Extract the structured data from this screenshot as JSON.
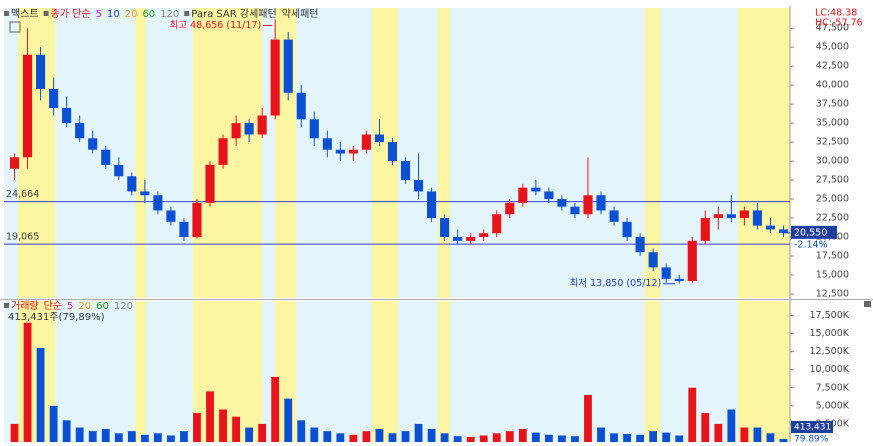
{
  "chart_data": {
    "type": "candlestick",
    "stock_name": "맥스트",
    "legend": [
      {
        "label": "종가 단순",
        "color": "#e8141c"
      },
      {
        "label": "5",
        "color": "#d21fd2"
      },
      {
        "label": "10",
        "color": "#1f3fd2"
      },
      {
        "label": "20",
        "color": "#e8a013"
      },
      {
        "label": "60",
        "color": "#1a9b1a"
      },
      {
        "label": "120",
        "color": "#888888"
      },
      {
        "label": "Para SAR 강세패턴",
        "color": "#333333"
      },
      {
        "label": "약세패턴",
        "color": "#333333"
      }
    ],
    "indicators": [
      "LC:48.38",
      "HC:-57.76"
    ],
    "up_color": "#e8141c",
    "down_color": "#0b4fd3",
    "open": [
      29000,
      30500,
      44000,
      39500,
      37000,
      35000,
      33000,
      31500,
      29500,
      28000,
      26000,
      25500,
      23500,
      22000,
      20000,
      24500,
      29500,
      33000,
      35000,
      33500,
      36000,
      46000,
      39000,
      35500,
      33000,
      31500,
      31000,
      31500,
      33500,
      32500,
      30000,
      27500,
      26000,
      22500,
      20000,
      19500,
      20000,
      20500,
      23000,
      24500,
      26500,
      26000,
      25000,
      24000,
      23000,
      25500,
      23500,
      22000,
      20000,
      18000,
      16000,
      14500,
      14200,
      19500,
      22500,
      23000,
      22500,
      23500,
      21500,
      21000
    ],
    "high": [
      31000,
      47500,
      45000,
      41000,
      38500,
      36000,
      34000,
      32000,
      30500,
      28500,
      27500,
      26000,
      24000,
      22500,
      25000,
      30000,
      33500,
      36000,
      35500,
      37000,
      48656,
      47000,
      40000,
      36500,
      34000,
      32500,
      32000,
      34000,
      35500,
      33000,
      30500,
      31000,
      26500,
      23000,
      21000,
      20500,
      21000,
      23500,
      25000,
      27000,
      27500,
      26500,
      25500,
      24500,
      30500,
      26000,
      24000,
      22500,
      20500,
      18500,
      16500,
      15000,
      20000,
      23500,
      24000,
      25500,
      24000,
      24500,
      22500,
      21500
    ],
    "low": [
      27500,
      29000,
      38000,
      36000,
      34500,
      32500,
      31000,
      29000,
      27500,
      25500,
      24500,
      23000,
      21500,
      19500,
      19800,
      24000,
      29000,
      32000,
      32500,
      33000,
      35500,
      38000,
      34500,
      32000,
      30500,
      30000,
      30000,
      31000,
      32000,
      29500,
      27000,
      25000,
      22000,
      19500,
      19000,
      19000,
      19500,
      20000,
      22500,
      24000,
      25500,
      24500,
      23500,
      22500,
      22500,
      23000,
      21500,
      19500,
      17500,
      15500,
      14000,
      13850,
      14000,
      19000,
      21000,
      22000,
      21500,
      21000,
      20500,
      20000
    ],
    "close": [
      30500,
      44000,
      39500,
      37000,
      35000,
      33000,
      31500,
      29500,
      28000,
      26000,
      25500,
      23500,
      22000,
      20000,
      24500,
      29500,
      33000,
      35000,
      33500,
      36000,
      46000,
      39000,
      35500,
      33000,
      31500,
      31000,
      31500,
      33500,
      32500,
      30000,
      27500,
      26000,
      22500,
      20000,
      19500,
      20000,
      20500,
      23000,
      24500,
      26500,
      26000,
      25000,
      24000,
      23000,
      25500,
      23500,
      22000,
      20000,
      18000,
      16000,
      14500,
      14200,
      19500,
      22500,
      23000,
      22500,
      23500,
      21500,
      21000,
      20550
    ],
    "volume": [
      2500,
      16500,
      13000,
      5000,
      3000,
      2000,
      1500,
      1800,
      1200,
      1500,
      1000,
      1200,
      900,
      1500,
      4000,
      7000,
      4500,
      3500,
      2000,
      2500,
      9000,
      6000,
      3000,
      2000,
      1500,
      1200,
      1000,
      1500,
      1800,
      1200,
      1500,
      2500,
      1800,
      1200,
      800,
      700,
      900,
      1200,
      1500,
      1800,
      1300,
      1000,
      900,
      800,
      6500,
      2000,
      1200,
      1100,
      1000,
      1500,
      1300,
      900,
      7500,
      4000,
      2500,
      4500,
      2000,
      2000,
      1200,
      413
    ],
    "ylim": [
      11970,
      50160
    ],
    "yticks": [
      {
        "value": 12500,
        "label": "12,500"
      },
      {
        "value": 15000,
        "label": "15,000"
      },
      {
        "value": 17500,
        "label": "17,500"
      },
      {
        "value": 20000,
        "label": "20,000"
      },
      {
        "value": 22500,
        "label": "22,500"
      },
      {
        "value": 25000,
        "label": "25,000"
      },
      {
        "value": 27500,
        "label": "27,500"
      },
      {
        "value": 30000,
        "label": "30,000"
      },
      {
        "value": 32500,
        "label": "32,500"
      },
      {
        "value": 35000,
        "label": "35,000"
      },
      {
        "value": 37500,
        "label": "37,500"
      },
      {
        "value": 40000,
        "label": "40,000"
      },
      {
        "value": 42500,
        "label": "42,500"
      },
      {
        "value": 45000,
        "label": "45,000"
      },
      {
        "value": 47500,
        "label": "47,500"
      }
    ],
    "hlines": [
      {
        "value": 24664,
        "label": "24,664"
      },
      {
        "value": 19065,
        "label": "19,065"
      }
    ],
    "current": {
      "value": 20550,
      "label": "20,550",
      "change": "-2.14%"
    },
    "max_label": "최고 48,656 (11/17)",
    "min_label": "최저 13,850 (05/12)",
    "volume_panel": {
      "title": "거래량",
      "legend": [
        {
          "label": "단순",
          "color": "#e8141c"
        },
        {
          "label": "5",
          "color": "#d21fd2"
        },
        {
          "label": "20",
          "color": "#e8a013"
        },
        {
          "label": "60",
          "color": "#1a9b1a"
        },
        {
          "label": "120",
          "color": "#888888"
        }
      ],
      "summary": "413,431주(79,89%)",
      "last_label": "413,431",
      "last_pct": "79.89%",
      "ylim": [
        0,
        19500
      ],
      "yticks": [
        {
          "value": 2500,
          "label": "2,500K"
        },
        {
          "value": 5000,
          "label": "5,000K"
        },
        {
          "value": 7500,
          "label": "7,500K"
        },
        {
          "value": 10000,
          "label": "10,000K"
        },
        {
          "value": 12500,
          "label": "12,500K"
        },
        {
          "value": 15000,
          "label": "15,000K"
        },
        {
          "value": 17500,
          "label": "17,500K"
        }
      ]
    }
  }
}
